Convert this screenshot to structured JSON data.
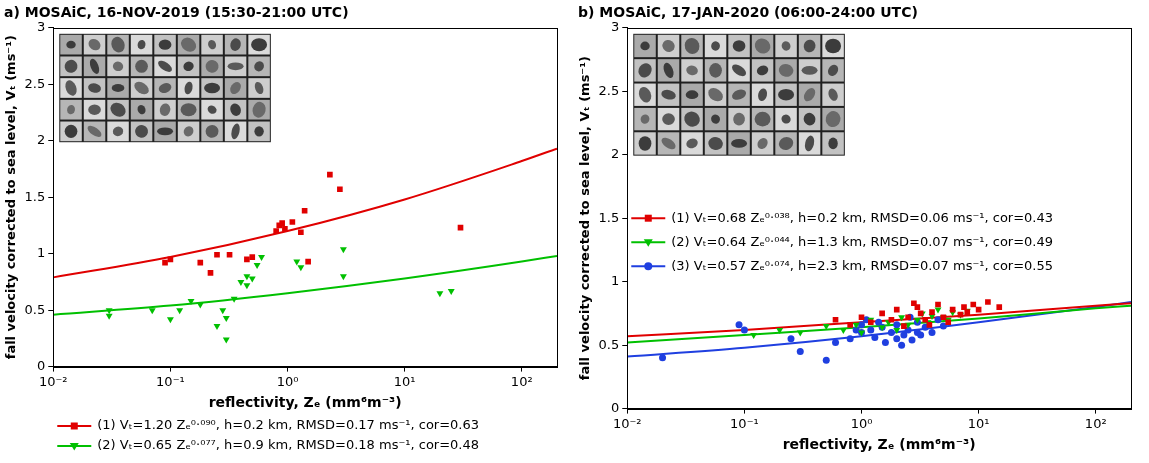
{
  "chart_data": [
    {
      "type": "scatter",
      "title": "a) MOSAiC, 16-NOV-2019 (15:30-21:00 UTC)",
      "x_label": "reflectivity, Zₑ (mm⁶m⁻³)",
      "y_label": "fall velocity corrected to sea level, Vₜ (ms⁻¹)",
      "log": "x",
      "xlim": [
        0.01,
        200
      ],
      "ylim": [
        0,
        3
      ],
      "xticks": [
        {
          "value": 0.01,
          "label": "10⁻²"
        },
        {
          "value": 0.1,
          "label": "10⁻¹"
        },
        {
          "value": 1,
          "label": "10⁰"
        },
        {
          "value": 10,
          "label": "10¹"
        },
        {
          "value": 100,
          "label": "10²"
        }
      ],
      "yticks": [
        0,
        0.5,
        1,
        1.5,
        2,
        2.5,
        3
      ],
      "grid": false,
      "legend": "bottom",
      "series": [
        {
          "name": "(1) Vₜ=1.20 Zₑ⁰·⁰⁹⁰, h=0.2 km, RMSD=0.17 ms⁻¹, cor=0.63",
          "color": "#e00000",
          "marker": "square",
          "line_style": "solid",
          "x": [
            0.09,
            0.1,
            0.18,
            0.22,
            0.25,
            0.32,
            0.45,
            0.5,
            0.8,
            0.85,
            0.9,
            0.95,
            1.1,
            1.3,
            1.4,
            1.5,
            2.3,
            2.8,
            30
          ],
          "values": [
            0.92,
            0.95,
            0.92,
            0.83,
            0.99,
            0.99,
            0.95,
            0.97,
            1.2,
            1.25,
            1.27,
            1.22,
            1.28,
            1.19,
            1.38,
            0.93,
            1.7,
            1.57,
            1.23
          ],
          "fit": {
            "x": [
              0.01,
              0.1,
              1,
              10,
              100,
              200
            ],
            "values": [
              0.79,
              0.97,
              1.2,
              1.48,
              1.82,
              1.93
            ]
          }
        },
        {
          "name": "(2) Vₜ=0.65 Zₑ⁰·⁰⁷⁷, h=0.9 km, RMSD=0.18 ms⁻¹, cor=0.48",
          "color": "#00c000",
          "marker": "triangle-down",
          "line_style": "solid",
          "x": [
            0.03,
            0.03,
            0.07,
            0.1,
            0.12,
            0.15,
            0.18,
            0.25,
            0.28,
            0.3,
            0.3,
            0.35,
            0.4,
            0.45,
            0.45,
            0.5,
            0.55,
            0.6,
            1.2,
            1.3,
            3,
            3,
            20,
            25
          ],
          "values": [
            0.5,
            0.45,
            0.5,
            0.42,
            0.5,
            0.58,
            0.55,
            0.36,
            0.5,
            0.43,
            0.24,
            0.6,
            0.75,
            0.8,
            0.72,
            0.78,
            0.9,
            0.97,
            0.93,
            0.88,
            1.04,
            0.8,
            0.65,
            0.67
          ],
          "fit": {
            "x": [
              0.01,
              0.1,
              1,
              10,
              100,
              200
            ],
            "values": [
              0.46,
              0.54,
              0.65,
              0.78,
              0.93,
              0.98
            ]
          }
        }
      ]
    },
    {
      "type": "scatter",
      "title": "b) MOSAiC, 17-JAN-2020 (06:00-24:00 UTC)",
      "x_label": "reflectivity, Zₑ (mm⁶m⁻³)",
      "y_label": "fall velocity corrected to sea level, Vₜ (ms⁻¹)",
      "log": "x",
      "xlim": [
        0.01,
        200
      ],
      "ylim": [
        0,
        3
      ],
      "xticks": [
        {
          "value": 0.01,
          "label": "10⁻²"
        },
        {
          "value": 0.1,
          "label": "10⁻¹"
        },
        {
          "value": 1,
          "label": "10⁰"
        },
        {
          "value": 10,
          "label": "10¹"
        },
        {
          "value": 100,
          "label": "10²"
        }
      ],
      "yticks": [
        0,
        0.5,
        1,
        1.5,
        2,
        2.5,
        3
      ],
      "grid": false,
      "legend": "left",
      "series": [
        {
          "name": "(1) Vₜ=0.68 Zₑ⁰·⁰³⁸, h=0.2 km, RMSD=0.06 ms⁻¹, cor=0.43",
          "color": "#e00000",
          "marker": "square",
          "line_style": "solid",
          "x": [
            0.6,
            0.8,
            1,
            1.2,
            1.5,
            1.8,
            2,
            2.3,
            2.5,
            3,
            3.2,
            3.5,
            4,
            4.5,
            5,
            5.5,
            6,
            7,
            7.5,
            8,
            9,
            10,
            12,
            15,
            3.8,
            2.8
          ],
          "values": [
            0.7,
            0.66,
            0.72,
            0.68,
            0.75,
            0.7,
            0.78,
            0.65,
            0.72,
            0.8,
            0.75,
            0.7,
            0.76,
            0.82,
            0.72,
            0.68,
            0.78,
            0.74,
            0.8,
            0.76,
            0.82,
            0.78,
            0.84,
            0.8,
            0.66,
            0.83
          ],
          "fit": {
            "x": [
              0.01,
              0.1,
              1,
              10,
              100,
              200
            ],
            "values": [
              0.57,
              0.62,
              0.68,
              0.74,
              0.81,
              0.83
            ]
          }
        },
        {
          "name": "(2) Vₜ=0.64 Zₑ⁰·⁰⁴⁴, h=1.3 km, RMSD=0.07 ms⁻¹, cor=0.49",
          "color": "#00c000",
          "marker": "triangle-down",
          "line_style": "solid",
          "x": [
            0.12,
            0.2,
            0.3,
            0.5,
            0.7,
            0.9,
            1,
            1.2,
            1.5,
            1.7,
            2,
            2.2,
            2.5,
            3,
            3.3,
            3.7,
            4,
            4.5,
            5,
            5.5,
            6,
            7,
            8
          ],
          "values": [
            0.58,
            0.62,
            0.6,
            0.65,
            0.62,
            0.66,
            0.6,
            0.7,
            0.64,
            0.68,
            0.62,
            0.72,
            0.66,
            0.7,
            0.75,
            0.68,
            0.73,
            0.78,
            0.72,
            0.7,
            0.76,
            0.74,
            0.77
          ],
          "fit": {
            "x": [
              0.01,
              0.1,
              1,
              10,
              100,
              200
            ],
            "values": [
              0.52,
              0.58,
              0.64,
              0.71,
              0.79,
              0.81
            ]
          }
        },
        {
          "name": "(3) Vₜ=0.57 Zₑ⁰·⁰⁷⁴, h=2.3 km, RMSD=0.07 ms⁻¹, cor=0.55",
          "color": "#1f3fe0",
          "marker": "circle",
          "line_style": "solid",
          "x": [
            0.02,
            0.09,
            0.1,
            0.25,
            0.3,
            0.5,
            0.6,
            0.8,
            1,
            1,
            1.2,
            1.3,
            1.5,
            1.6,
            1.8,
            2,
            2,
            2.2,
            2.3,
            2.5,
            2.7,
            3,
            3,
            3.2,
            3.5,
            4,
            4.5,
            5,
            1.1,
            0.9,
            1.4,
            2.6
          ],
          "values": [
            0.4,
            0.66,
            0.62,
            0.55,
            0.45,
            0.38,
            0.52,
            0.55,
            0.6,
            0.66,
            0.62,
            0.56,
            0.64,
            0.52,
            0.6,
            0.55,
            0.66,
            0.5,
            0.58,
            0.62,
            0.54,
            0.6,
            0.68,
            0.58,
            0.64,
            0.6,
            0.7,
            0.65,
            0.7,
            0.62,
            0.68,
            0.72
          ],
          "fit": {
            "x": [
              0.01,
              0.1,
              1,
              10,
              100,
              200
            ],
            "values": [
              0.41,
              0.48,
              0.57,
              0.68,
              0.8,
              0.84
            ]
          }
        }
      ]
    }
  ]
}
